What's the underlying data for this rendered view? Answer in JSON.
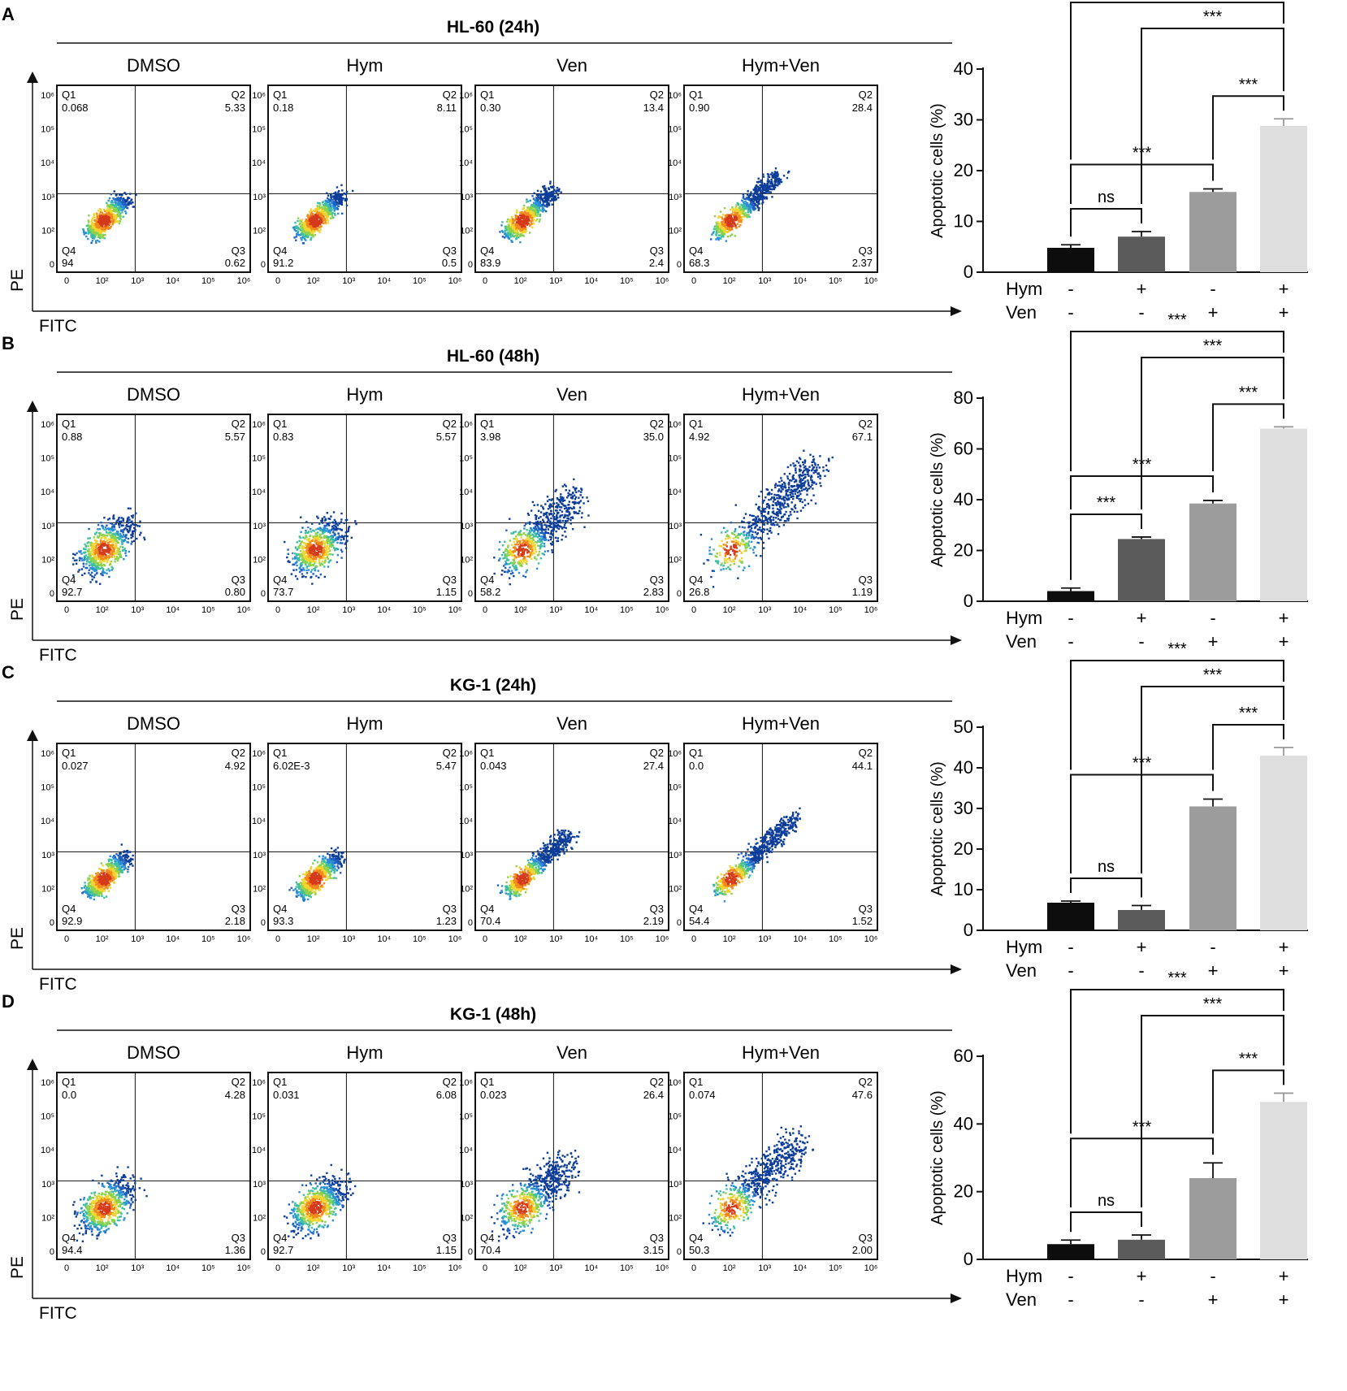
{
  "axis_labels": {
    "y": "PE",
    "x": "FITC"
  },
  "tick_labels": {
    "x": [
      "0",
      "10²",
      "10³",
      "10⁴",
      "10⁵",
      "10⁶"
    ],
    "y": [
      "10⁶",
      "10⁵",
      "10⁴",
      "10³",
      "10²",
      "0"
    ]
  },
  "quadrant_names": [
    "Q1",
    "Q2",
    "Q3",
    "Q4"
  ],
  "bar_ylabel": "Apoptotic cells (%)",
  "treatment_rows": [
    "Hym",
    "Ven"
  ],
  "colors": {
    "bars": [
      "#0d0d0d",
      "#5b5b5b",
      "#9c9c9c",
      "#dedede"
    ],
    "dense": "#d43a1a",
    "sparse": "#1f5fbf"
  },
  "panels": [
    {
      "letter": "A",
      "title": "HL-60 (24h)",
      "plots": [
        {
          "title": "DMSO",
          "q1": "0.068",
          "q2": "5.33",
          "q3": "0.62",
          "q4": "94"
        },
        {
          "title": "Hym",
          "q1": "0.18",
          "q2": "8.11",
          "q3": "0.5",
          "q4": "91.2"
        },
        {
          "title": "Ven",
          "q1": "0.30",
          "q2": "13.4",
          "q3": "2.4",
          "q4": "83.9"
        },
        {
          "title": "Hym+Ven",
          "q1": "0.90",
          "q2": "28.4",
          "q3": "2.37",
          "q4": "68.3"
        }
      ],
      "bars": {
        "yticks": [
          "0",
          "10",
          "20",
          "30",
          "40"
        ],
        "hym": [
          "-",
          "+",
          "-",
          "+"
        ],
        "ven": [
          "-",
          "-",
          "+",
          "+"
        ],
        "sig": [
          "ns",
          "***",
          "***",
          "***",
          "***"
        ]
      }
    },
    {
      "letter": "B",
      "title": "HL-60 (48h)",
      "plots": [
        {
          "title": "DMSO",
          "q1": "0.88",
          "q2": "5.57",
          "q3": "0.80",
          "q4": "92.7"
        },
        {
          "title": "Hym",
          "q1": "0.83",
          "q2": "5.57",
          "q3": "1.15",
          "q4": "73.7"
        },
        {
          "title": "Ven",
          "q1": "3.98",
          "q2": "35.0",
          "q3": "2.83",
          "q4": "58.2"
        },
        {
          "title": "Hym+Ven",
          "q1": "4.92",
          "q2": "67.1",
          "q3": "1.19",
          "q4": "26.8"
        }
      ],
      "bars": {
        "yticks": [
          "0",
          "20",
          "40",
          "60",
          "80"
        ],
        "hym": [
          "-",
          "+",
          "-",
          "+"
        ],
        "ven": [
          "-",
          "-",
          "+",
          "+"
        ],
        "sig": [
          "***",
          "***",
          "***",
          "***",
          "***"
        ]
      }
    },
    {
      "letter": "C",
      "title": "KG-1 (24h)",
      "plots": [
        {
          "title": "DMSO",
          "q1": "0.027",
          "q2": "4.92",
          "q3": "2.18",
          "q4": "92.9"
        },
        {
          "title": "Hym",
          "q1": "6.02E-3",
          "q2": "5.47",
          "q3": "1.23",
          "q4": "93.3"
        },
        {
          "title": "Ven",
          "q1": "0.043",
          "q2": "27.4",
          "q3": "2.19",
          "q4": "70.4"
        },
        {
          "title": "Hym+Ven",
          "q1": "0.0",
          "q2": "44.1",
          "q3": "1.52",
          "q4": "54.4"
        }
      ],
      "bars": {
        "yticks": [
          "0",
          "10",
          "20",
          "30",
          "40",
          "50"
        ],
        "hym": [
          "-",
          "+",
          "-",
          "+"
        ],
        "ven": [
          "-",
          "-",
          "+",
          "+"
        ],
        "sig": [
          "ns",
          "***",
          "***",
          "***",
          "***"
        ]
      }
    },
    {
      "letter": "D",
      "title": "KG-1 (48h)",
      "plots": [
        {
          "title": "DMSO",
          "q1": "0.0",
          "q2": "4.28",
          "q3": "1.36",
          "q4": "94.4"
        },
        {
          "title": "Hym",
          "q1": "0.031",
          "q2": "6.08",
          "q3": "1.15",
          "q4": "92.7"
        },
        {
          "title": "Ven",
          "q1": "0.023",
          "q2": "26.4",
          "q3": "3.15",
          "q4": "70.4"
        },
        {
          "title": "Hym+Ven",
          "q1": "0.074",
          "q2": "47.6",
          "q3": "2.00",
          "q4": "50.3"
        }
      ],
      "bars": {
        "yticks": [
          "0",
          "20",
          "40",
          "60"
        ],
        "hym": [
          "-",
          "+",
          "-",
          "+"
        ],
        "ven": [
          "-",
          "-",
          "+",
          "+"
        ],
        "sig": [
          "ns",
          "***",
          "***",
          "***",
          "***"
        ]
      }
    }
  ],
  "chart_data": [
    {
      "type": "bar",
      "title": "HL-60 (24h)",
      "categories": [
        "DMSO",
        "Hym",
        "Ven",
        "Hym+Ven"
      ],
      "values": [
        4.8,
        7.0,
        15.8,
        28.8
      ],
      "errors": [
        0.6,
        1.0,
        0.6,
        1.4
      ],
      "ylabel": "Apoptotic cells (%)",
      "ylim": [
        0,
        40
      ]
    },
    {
      "type": "bar",
      "title": "HL-60 (48h)",
      "categories": [
        "DMSO",
        "Hym",
        "Ven",
        "Hym+Ven"
      ],
      "values": [
        4.0,
        24.5,
        38.5,
        68.0
      ],
      "errors": [
        1.2,
        0.8,
        1.2,
        0.7
      ],
      "ylabel": "Apoptotic cells (%)",
      "ylim": [
        0,
        80
      ]
    },
    {
      "type": "bar",
      "title": "KG-1 (24h)",
      "categories": [
        "DMSO",
        "Hym",
        "Ven",
        "Hym+Ven"
      ],
      "values": [
        6.8,
        5.0,
        30.5,
        43.0
      ],
      "errors": [
        0.4,
        1.1,
        1.8,
        2.0
      ],
      "ylabel": "Apoptotic cells (%)",
      "ylim": [
        0,
        50
      ]
    },
    {
      "type": "bar",
      "title": "KG-1 (48h)",
      "categories": [
        "DMSO",
        "Hym",
        "Ven",
        "Hym+Ven"
      ],
      "values": [
        4.5,
        5.8,
        24.0,
        46.5
      ],
      "errors": [
        1.2,
        1.4,
        4.5,
        2.6
      ],
      "ylabel": "Apoptotic cells (%)",
      "ylim": [
        0,
        60
      ]
    }
  ]
}
